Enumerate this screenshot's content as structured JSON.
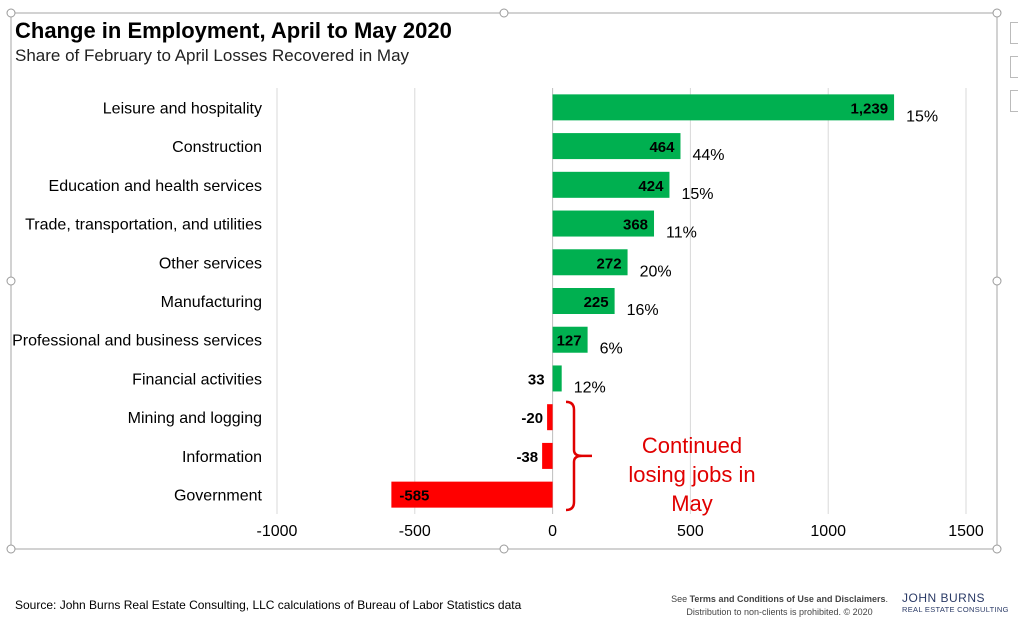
{
  "title": "Change in Employment, April to May 2020",
  "subtitle": "Share of February to April Losses Recovered in May",
  "source": "Source: John Burns Real Estate Consulting, LLC calculations of Bureau of Labor Statistics data",
  "terms": {
    "line1_prefix": "See ",
    "line1_bold": "Terms and Conditions of Use and Disclaimers",
    "line1_suffix": ".",
    "line2": "Distribution to non-clients is prohibited. © 2020"
  },
  "logo": {
    "top": "JOHN BURNS",
    "bottom": "REAL ESTATE CONSULTING"
  },
  "annotation": {
    "lines": [
      "Continued",
      "losing jobs in",
      "May"
    ],
    "color": "#e00000"
  },
  "colors": {
    "positive": "#00b050",
    "negative": "#ff0000",
    "grid": "#d9d9d9"
  },
  "chart_data": {
    "type": "bar",
    "orientation": "horizontal",
    "title": "Change in Employment, April to May 2020",
    "subtitle": "Share of February to April Losses Recovered in May",
    "xlim": [
      -1000,
      1500
    ],
    "x_ticks": [
      -1000,
      -500,
      0,
      500,
      1000,
      1500
    ],
    "grid": true,
    "categories": [
      "Leisure and hospitality",
      "Construction",
      "Education and health services",
      "Trade, transportation, and utilities",
      "Other services",
      "Manufacturing",
      "Professional and business services",
      "Financial activities",
      "Mining and logging",
      "Information",
      "Government"
    ],
    "values": [
      1239,
      464,
      424,
      368,
      272,
      225,
      127,
      33,
      -20,
      -38,
      -585
    ],
    "value_labels": [
      "1,239",
      "464",
      "424",
      "368",
      "272",
      "225",
      "127",
      "33",
      "-20",
      "-38",
      "-585"
    ],
    "share_labels": [
      "15%",
      "44%",
      "15%",
      "11%",
      "20%",
      "16%",
      "6%",
      "12%",
      "",
      "",
      ""
    ]
  }
}
